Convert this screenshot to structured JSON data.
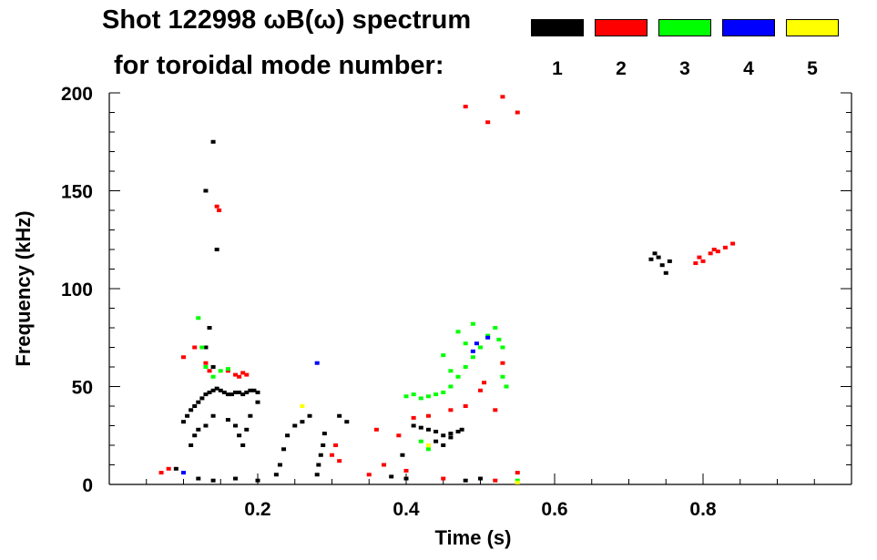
{
  "chart_data": {
    "type": "scatter",
    "title_line1": "Shot 122998 ωB(ω) spectrum",
    "title_line2": "for toroidal mode number:",
    "xlabel": "Time (s)",
    "ylabel": "Frequency (kHz)",
    "xlim": [
      0.0,
      1.0
    ],
    "ylim": [
      0,
      200
    ],
    "x_ticks": [
      0.2,
      0.4,
      0.6,
      0.8
    ],
    "x_tick_labels": [
      "0.2",
      "0.4",
      "0.6",
      "0.8"
    ],
    "y_ticks": [
      0,
      50,
      100,
      150,
      200
    ],
    "y_tick_labels": [
      "0",
      "50",
      "100",
      "150",
      "200"
    ],
    "legend": [
      {
        "label": "1",
        "color": "#000000"
      },
      {
        "label": "2",
        "color": "#ff0000"
      },
      {
        "label": "3",
        "color": "#00ff00"
      },
      {
        "label": "4",
        "color": "#0000ff"
      },
      {
        "label": "5",
        "color": "#ffff00"
      }
    ],
    "series": [
      {
        "name": "1",
        "color": "#000000",
        "points": [
          [
            0.1,
            32
          ],
          [
            0.105,
            35
          ],
          [
            0.11,
            38
          ],
          [
            0.115,
            40
          ],
          [
            0.12,
            42
          ],
          [
            0.125,
            44
          ],
          [
            0.13,
            46
          ],
          [
            0.135,
            47
          ],
          [
            0.14,
            48
          ],
          [
            0.145,
            49
          ],
          [
            0.15,
            48
          ],
          [
            0.155,
            47
          ],
          [
            0.16,
            46
          ],
          [
            0.165,
            46
          ],
          [
            0.17,
            47
          ],
          [
            0.175,
            47
          ],
          [
            0.18,
            46
          ],
          [
            0.185,
            47
          ],
          [
            0.19,
            48
          ],
          [
            0.195,
            48
          ],
          [
            0.2,
            47
          ],
          [
            0.11,
            20
          ],
          [
            0.115,
            25
          ],
          [
            0.12,
            28
          ],
          [
            0.13,
            30
          ],
          [
            0.14,
            35
          ],
          [
            0.16,
            33
          ],
          [
            0.17,
            30
          ],
          [
            0.175,
            25
          ],
          [
            0.18,
            20
          ],
          [
            0.185,
            28
          ],
          [
            0.19,
            35
          ],
          [
            0.2,
            42
          ],
          [
            0.13,
            70
          ],
          [
            0.135,
            80
          ],
          [
            0.14,
            60
          ],
          [
            0.145,
            120
          ],
          [
            0.14,
            175
          ],
          [
            0.225,
            5
          ],
          [
            0.23,
            10
          ],
          [
            0.235,
            18
          ],
          [
            0.24,
            25
          ],
          [
            0.25,
            30
          ],
          [
            0.26,
            32
          ],
          [
            0.27,
            35
          ],
          [
            0.28,
            5
          ],
          [
            0.282,
            10
          ],
          [
            0.285,
            15
          ],
          [
            0.288,
            20
          ],
          [
            0.29,
            26
          ],
          [
            0.41,
            30
          ],
          [
            0.42,
            29
          ],
          [
            0.43,
            28
          ],
          [
            0.44,
            27
          ],
          [
            0.45,
            25
          ],
          [
            0.46,
            26
          ],
          [
            0.47,
            27
          ],
          [
            0.475,
            28
          ],
          [
            0.44,
            22
          ],
          [
            0.45,
            20
          ],
          [
            0.46,
            24
          ],
          [
            0.73,
            115
          ],
          [
            0.735,
            118
          ],
          [
            0.74,
            116
          ],
          [
            0.745,
            112
          ],
          [
            0.75,
            108
          ],
          [
            0.755,
            114
          ],
          [
            0.12,
            3
          ],
          [
            0.14,
            2
          ],
          [
            0.17,
            3
          ],
          [
            0.2,
            2
          ],
          [
            0.38,
            4
          ],
          [
            0.4,
            3
          ],
          [
            0.48,
            2
          ],
          [
            0.5,
            3
          ],
          [
            0.31,
            35
          ],
          [
            0.32,
            32
          ],
          [
            0.395,
            15
          ],
          [
            0.13,
            150
          ],
          [
            0.09,
            8
          ]
        ]
      },
      {
        "name": "2",
        "color": "#ff0000",
        "points": [
          [
            0.145,
            142
          ],
          [
            0.148,
            140
          ],
          [
            0.16,
            58
          ],
          [
            0.17,
            56
          ],
          [
            0.175,
            55
          ],
          [
            0.18,
            57
          ],
          [
            0.185,
            56
          ],
          [
            0.1,
            65
          ],
          [
            0.115,
            70
          ],
          [
            0.13,
            62
          ],
          [
            0.135,
            58
          ],
          [
            0.3,
            15
          ],
          [
            0.305,
            20
          ],
          [
            0.31,
            12
          ],
          [
            0.36,
            28
          ],
          [
            0.37,
            10
          ],
          [
            0.39,
            25
          ],
          [
            0.41,
            34
          ],
          [
            0.43,
            35
          ],
          [
            0.46,
            38
          ],
          [
            0.48,
            40
          ],
          [
            0.5,
            48
          ],
          [
            0.505,
            52
          ],
          [
            0.52,
            38
          ],
          [
            0.53,
            62
          ],
          [
            0.48,
            193
          ],
          [
            0.51,
            185
          ],
          [
            0.53,
            198
          ],
          [
            0.55,
            190
          ],
          [
            0.79,
            113
          ],
          [
            0.795,
            116
          ],
          [
            0.8,
            114
          ],
          [
            0.81,
            118
          ],
          [
            0.815,
            120
          ],
          [
            0.82,
            119
          ],
          [
            0.83,
            121
          ],
          [
            0.84,
            123
          ],
          [
            0.07,
            6
          ],
          [
            0.08,
            8
          ],
          [
            0.35,
            5
          ],
          [
            0.4,
            7
          ],
          [
            0.45,
            3
          ],
          [
            0.52,
            2
          ],
          [
            0.55,
            6
          ]
        ]
      },
      {
        "name": "3",
        "color": "#00ff00",
        "points": [
          [
            0.12,
            85
          ],
          [
            0.125,
            70
          ],
          [
            0.13,
            60
          ],
          [
            0.14,
            55
          ],
          [
            0.15,
            58
          ],
          [
            0.16,
            59
          ],
          [
            0.4,
            45
          ],
          [
            0.41,
            46
          ],
          [
            0.42,
            44
          ],
          [
            0.43,
            45
          ],
          [
            0.44,
            46
          ],
          [
            0.45,
            47
          ],
          [
            0.46,
            50
          ],
          [
            0.47,
            55
          ],
          [
            0.48,
            60
          ],
          [
            0.49,
            65
          ],
          [
            0.5,
            70
          ],
          [
            0.51,
            76
          ],
          [
            0.52,
            80
          ],
          [
            0.525,
            74
          ],
          [
            0.53,
            70
          ],
          [
            0.53,
            55
          ],
          [
            0.535,
            50
          ],
          [
            0.47,
            78
          ],
          [
            0.48,
            72
          ],
          [
            0.45,
            66
          ],
          [
            0.42,
            22
          ],
          [
            0.43,
            18
          ],
          [
            0.46,
            58
          ],
          [
            0.49,
            82
          ],
          [
            0.55,
            2
          ]
        ]
      },
      {
        "name": "4",
        "color": "#0000ff",
        "points": [
          [
            0.28,
            62
          ],
          [
            0.49,
            68
          ],
          [
            0.51,
            75
          ],
          [
            0.495,
            72
          ],
          [
            0.1,
            6
          ]
        ]
      },
      {
        "name": "5",
        "color": "#ffff00",
        "points": [
          [
            0.26,
            40
          ],
          [
            0.43,
            20
          ],
          [
            0.55,
            1
          ]
        ]
      }
    ]
  }
}
